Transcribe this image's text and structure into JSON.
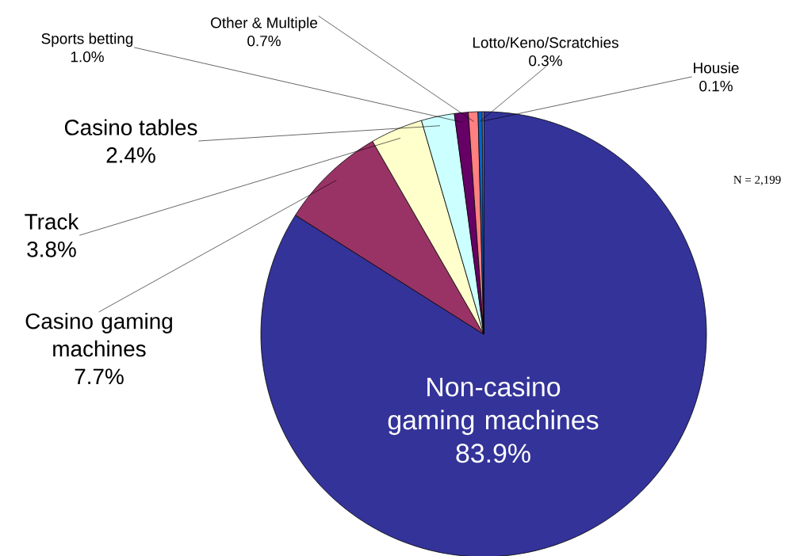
{
  "chart_data": {
    "type": "pie",
    "categories": [
      "Non-casino gaming machines",
      "Casino gaming machines",
      "Track",
      "Casino tables",
      "Sports betting",
      "Other & Multiple",
      "Lotto/Keno/Scratchies",
      "Housie"
    ],
    "values": [
      83.9,
      7.7,
      3.8,
      2.4,
      1.0,
      0.7,
      0.3,
      0.1
    ],
    "value_labels": [
      "83.9%",
      "7.7%",
      "3.8%",
      "2.4%",
      "1.0%",
      "0.7%",
      "0.3%",
      "0.1%"
    ],
    "colors": [
      "#333399",
      "#993366",
      "#ffffcc",
      "#ccffff",
      "#660066",
      "#ff8080",
      "#0066cc",
      "#ccccff"
    ],
    "annotations": [
      "N = 2,199"
    ]
  }
}
